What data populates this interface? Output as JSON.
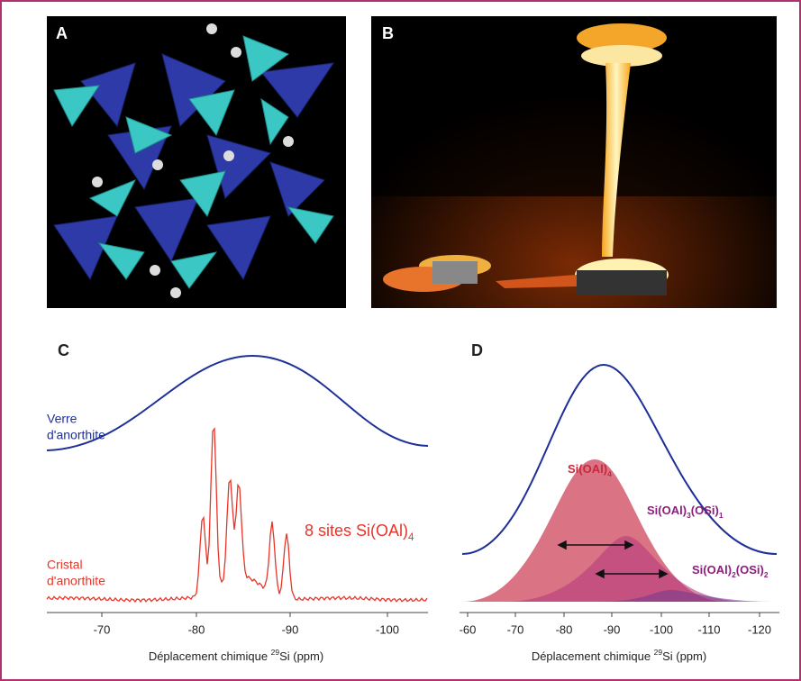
{
  "panels": [
    {
      "label": "A"
    },
    {
      "label": "B"
    },
    {
      "label": "C",
      "glass_label": [
        "Verre",
        "d'anorthite"
      ],
      "crystal_label": [
        "Cristal",
        "d'anorthite"
      ],
      "annotation": [
        "8 sites Si(OAl)",
        "4"
      ],
      "xticks": [
        "-70",
        "-80",
        "-90",
        "-100"
      ],
      "xlabel": [
        "Déplacement chimique ",
        "29",
        "Si (ppm)"
      ]
    },
    {
      "label": "D",
      "species": [
        [
          "Si(OAl)",
          "4"
        ],
        [
          "Si(OAl)",
          "3",
          "(OSi)",
          "1"
        ],
        [
          "Si(OAl)",
          "2",
          "(OSi)",
          "2"
        ]
      ],
      "xticks": [
        "-60",
        "-70",
        "-80",
        "-90",
        "-100",
        "-110",
        "-120"
      ],
      "xlabel": [
        "Déplacement chimique ",
        "29",
        "Si (ppm)"
      ]
    }
  ]
}
